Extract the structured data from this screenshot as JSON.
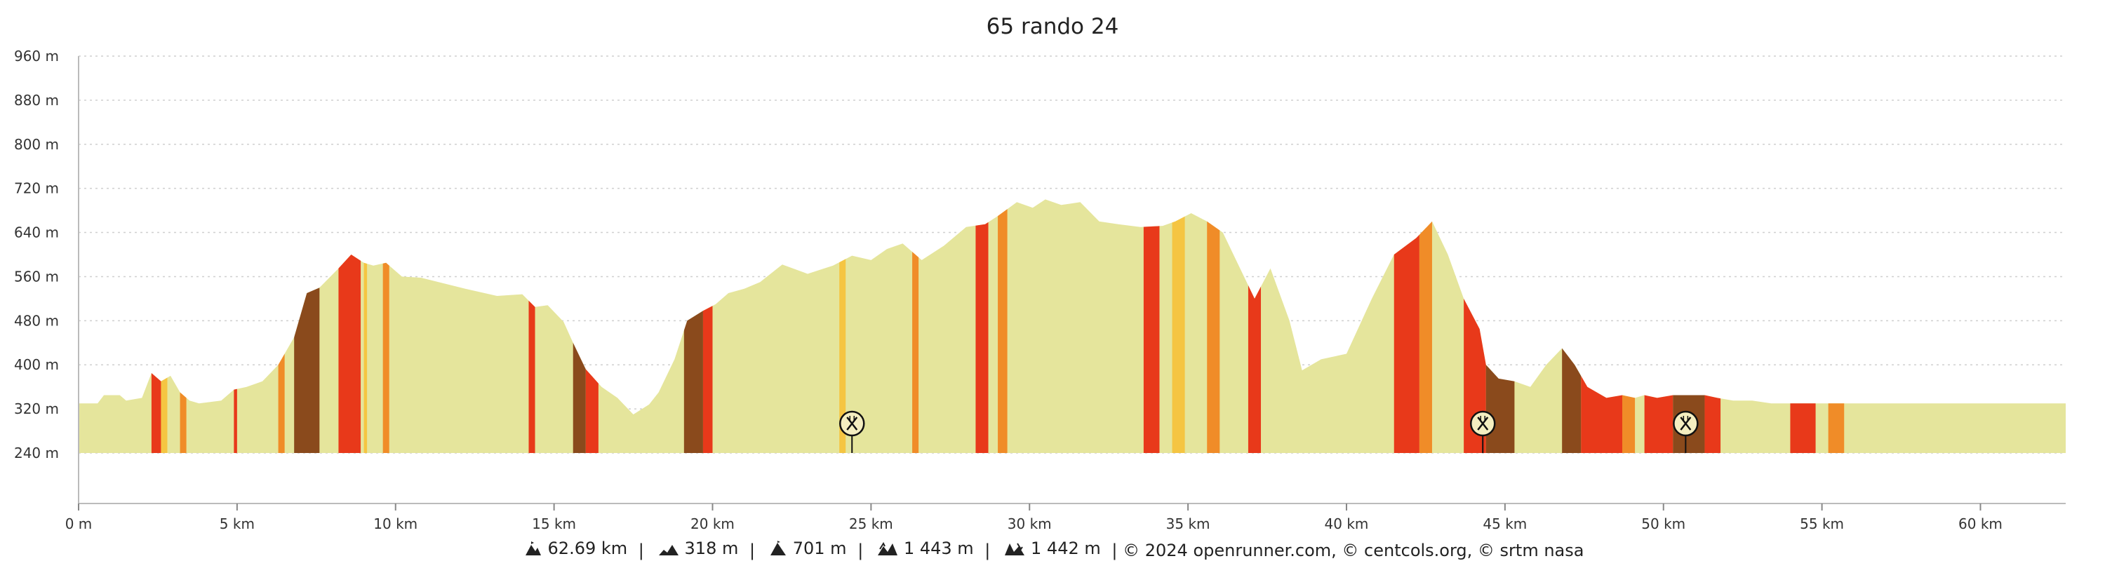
{
  "chart_data": {
    "type": "area",
    "title": "65 rando 24",
    "xlabel": "",
    "ylabel": "",
    "x_unit": "km",
    "y_unit": "m",
    "xlim": [
      0,
      62.69
    ],
    "ylim": [
      240,
      960
    ],
    "grid": true,
    "legend": "none",
    "x_ticks": [
      "0 m",
      "5 km",
      "10 km",
      "15 km",
      "20 km",
      "25 km",
      "30 km",
      "35 km",
      "40 km",
      "45 km",
      "50 km",
      "55 km",
      "60 km"
    ],
    "y_ticks": [
      "240 m",
      "320 m",
      "400 m",
      "480 m",
      "560 m",
      "640 m",
      "720 m",
      "800 m",
      "880 m",
      "960 m"
    ],
    "series": [
      {
        "x": [
          0,
          0.6,
          0.8,
          1.3,
          1.5,
          2.0,
          2.3,
          2.6,
          2.9,
          3.2,
          3.5,
          3.8,
          4.5,
          4.9,
          5.3,
          5.8,
          6.3,
          6.8,
          7.2,
          7.6,
          8.2,
          8.6,
          9.0,
          9.3,
          9.7,
          10.2,
          10.8,
          11.5,
          12.2,
          13.2,
          14.0,
          14.4,
          14.8,
          15.3,
          15.6,
          16.0,
          16.5,
          17.0,
          17.5,
          18.0,
          18.3,
          18.8,
          19.2,
          19.7,
          20.1,
          20.5,
          21.0,
          21.5,
          22.2,
          23.0,
          23.8,
          24.4,
          25.0,
          25.5,
          26.0,
          26.6,
          27.3,
          28.0,
          28.6,
          29.0,
          29.6,
          30.1,
          30.5,
          31.0,
          31.6,
          32.2,
          32.8,
          33.5,
          34.2,
          34.6,
          35.1,
          35.6,
          36.1,
          36.6,
          37.1,
          37.6,
          38.2,
          38.6,
          39.2,
          40.0,
          40.8,
          41.5,
          42.2,
          42.7,
          43.2,
          43.7,
          44.2,
          44.4,
          44.8,
          45.3,
          45.8,
          46.3,
          46.8,
          47.2,
          47.6,
          48.2,
          48.7,
          49.1,
          49.4,
          49.8,
          50.3,
          50.8,
          51.3,
          51.7,
          52.2,
          52.8,
          53.4,
          54.0,
          54.5,
          54.8,
          55.2,
          55.7,
          56.2,
          56.8,
          57.5,
          58.2,
          59.0,
          59.8,
          60.4,
          61.0,
          61.8,
          62.69
        ],
        "y": [
          330,
          330,
          345,
          345,
          335,
          340,
          385,
          370,
          380,
          350,
          335,
          330,
          335,
          355,
          360,
          370,
          400,
          450,
          530,
          540,
          575,
          600,
          585,
          580,
          585,
          560,
          558,
          548,
          538,
          525,
          528,
          505,
          508,
          478,
          440,
          392,
          360,
          340,
          310,
          328,
          350,
          410,
          480,
          498,
          510,
          530,
          538,
          550,
          582,
          565,
          580,
          598,
          590,
          610,
          620,
          590,
          616,
          650,
          655,
          670,
          695,
          685,
          700,
          690,
          695,
          660,
          655,
          650,
          652,
          660,
          675,
          660,
          640,
          580,
          520,
          575,
          480,
          390,
          410,
          420,
          520,
          600,
          630,
          660,
          600,
          520,
          465,
          400,
          375,
          370,
          360,
          400,
          430,
          400,
          360,
          340,
          345,
          340,
          345,
          340,
          345,
          345,
          345,
          340,
          335,
          335,
          330,
          330,
          330,
          330,
          330,
          330,
          330,
          330,
          330,
          330,
          330,
          330,
          330,
          330,
          330,
          330
        ],
        "stripes": [
          {
            "x": [
              2.3,
              2.6
            ],
            "color": "#e8391a"
          },
          {
            "x": [
              2.6,
              2.8
            ],
            "color": "#f5c542"
          },
          {
            "x": [
              3.2,
              3.4
            ],
            "color": "#f08c28"
          },
          {
            "x": [
              4.9,
              5.0
            ],
            "color": "#e8391a"
          },
          {
            "x": [
              6.3,
              6.5
            ],
            "color": "#f08c28"
          },
          {
            "x": [
              6.8,
              7.6
            ],
            "color": "#8a4a1c"
          },
          {
            "x": [
              8.2,
              8.6
            ],
            "color": "#e8391a"
          },
          {
            "x": [
              8.6,
              8.9
            ],
            "color": "#e8391a"
          },
          {
            "x": [
              9.0,
              9.1
            ],
            "color": "#f5c542"
          },
          {
            "x": [
              9.6,
              9.8
            ],
            "color": "#f08c28"
          },
          {
            "x": [
              14.2,
              14.4
            ],
            "color": "#e8391a"
          },
          {
            "x": [
              15.6,
              16.0
            ],
            "color": "#8a4a1c"
          },
          {
            "x": [
              16.0,
              16.4
            ],
            "color": "#e8391a"
          },
          {
            "x": [
              19.1,
              19.7
            ],
            "color": "#8a4a1c"
          },
          {
            "x": [
              19.7,
              20.0
            ],
            "color": "#e8391a"
          },
          {
            "x": [
              24.0,
              24.2
            ],
            "color": "#f5c542"
          },
          {
            "x": [
              26.3,
              26.5
            ],
            "color": "#f08c28"
          },
          {
            "x": [
              28.3,
              28.7
            ],
            "color": "#e8391a"
          },
          {
            "x": [
              29.0,
              29.3
            ],
            "color": "#f08c28"
          },
          {
            "x": [
              33.6,
              34.1
            ],
            "color": "#e8391a"
          },
          {
            "x": [
              34.5,
              34.9
            ],
            "color": "#f5c542"
          },
          {
            "x": [
              35.6,
              36.0
            ],
            "color": "#f08c28"
          },
          {
            "x": [
              36.9,
              37.3
            ],
            "color": "#e8391a"
          },
          {
            "x": [
              41.5,
              42.3
            ],
            "color": "#e8391a"
          },
          {
            "x": [
              42.3,
              42.7
            ],
            "color": "#f08c28"
          },
          {
            "x": [
              43.7,
              44.4
            ],
            "color": "#e8391a"
          },
          {
            "x": [
              44.4,
              45.3
            ],
            "color": "#8a4a1c"
          },
          {
            "x": [
              46.8,
              47.4
            ],
            "color": "#8a4a1c"
          },
          {
            "x": [
              47.4,
              48.7
            ],
            "color": "#e8391a"
          },
          {
            "x": [
              48.7,
              49.1
            ],
            "color": "#f08c28"
          },
          {
            "x": [
              49.4,
              50.3
            ],
            "color": "#e8391a"
          },
          {
            "x": [
              50.3,
              51.3
            ],
            "color": "#8a4a1c"
          },
          {
            "x": [
              51.3,
              51.8
            ],
            "color": "#e8391a"
          },
          {
            "x": [
              54.0,
              54.8
            ],
            "color": "#e8391a"
          },
          {
            "x": [
              55.2,
              55.7
            ],
            "color": "#f08c28"
          }
        ]
      }
    ],
    "markers": [
      {
        "x": 24.4,
        "icon": "cutlery-icon"
      },
      {
        "x": 44.3,
        "icon": "cutlery-icon"
      },
      {
        "x": 50.7,
        "icon": "cutlery-icon"
      }
    ],
    "colors": {
      "fill": "#e5e59c",
      "flat": "#e5e59c",
      "moderate": "#f5c542",
      "steep": "#f08c28",
      "very_steep": "#e8391a",
      "extreme": "#8a4a1c",
      "grid": "#cfcfcf",
      "axis": "#222222"
    }
  },
  "footer": {
    "distance_icon": "distance-icon",
    "distance": "62.69 km",
    "sep1": "|",
    "ascent_icon": "ascent-icon",
    "ascent": "318 m",
    "sep2": "|",
    "max_icon": "max-altitude-icon",
    "max": "701 m",
    "sep3": "|",
    "gain_icon": "elevation-gain-icon",
    "gain": "1 443 m",
    "sep4": "|",
    "loss_icon": "elevation-loss-icon",
    "loss": "1 442 m",
    "credits": "| © 2024 openrunner.com, © centcols.org, © srtm nasa"
  }
}
